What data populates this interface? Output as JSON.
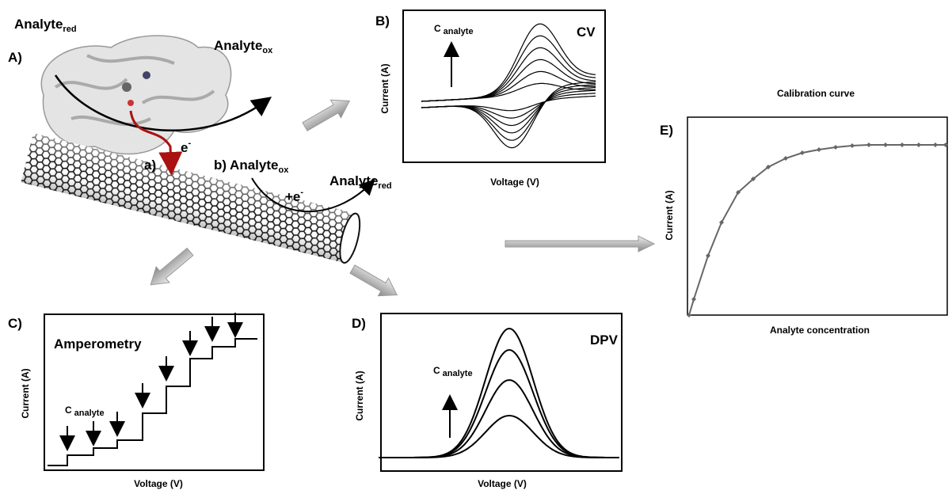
{
  "panel_a": {
    "label": "A)",
    "reactant": {
      "main": "Analyte",
      "sub": "red"
    },
    "product": {
      "main": "Analyte",
      "sub": "ox"
    },
    "path_a": {
      "label": "a)",
      "electron": {
        "main": "e",
        "sup": "-"
      }
    },
    "path_b": {
      "label": "b)",
      "reactant": {
        "main": "Analyte",
        "sub": "ox"
      },
      "electron": {
        "main": "+e",
        "sup": "-"
      },
      "product": {
        "main": "Analyte",
        "sub": "red"
      }
    }
  },
  "panel_b": {
    "label": "B)",
    "title": "CV",
    "y_label": "Current (A)",
    "x_label": "Voltage (V)",
    "arrow_label": {
      "main": "C",
      "sub": "analyte"
    }
  },
  "panel_c": {
    "label": "C)",
    "title": "Amperometry",
    "y_label": "Current (A)",
    "x_label": "Voltage (V)",
    "arrow_label": {
      "main": "C",
      "sub": "analyte"
    }
  },
  "panel_d": {
    "label": "D)",
    "title": "DPV",
    "y_label": "Current (A)",
    "x_label": "Voltage (V)",
    "arrow_label": {
      "main": "C",
      "sub": "analyte"
    }
  },
  "panel_e": {
    "label": "E)",
    "title": "Calibration  curve",
    "y_label": "Current (A)",
    "x_label": "Analyte concentration"
  }
}
